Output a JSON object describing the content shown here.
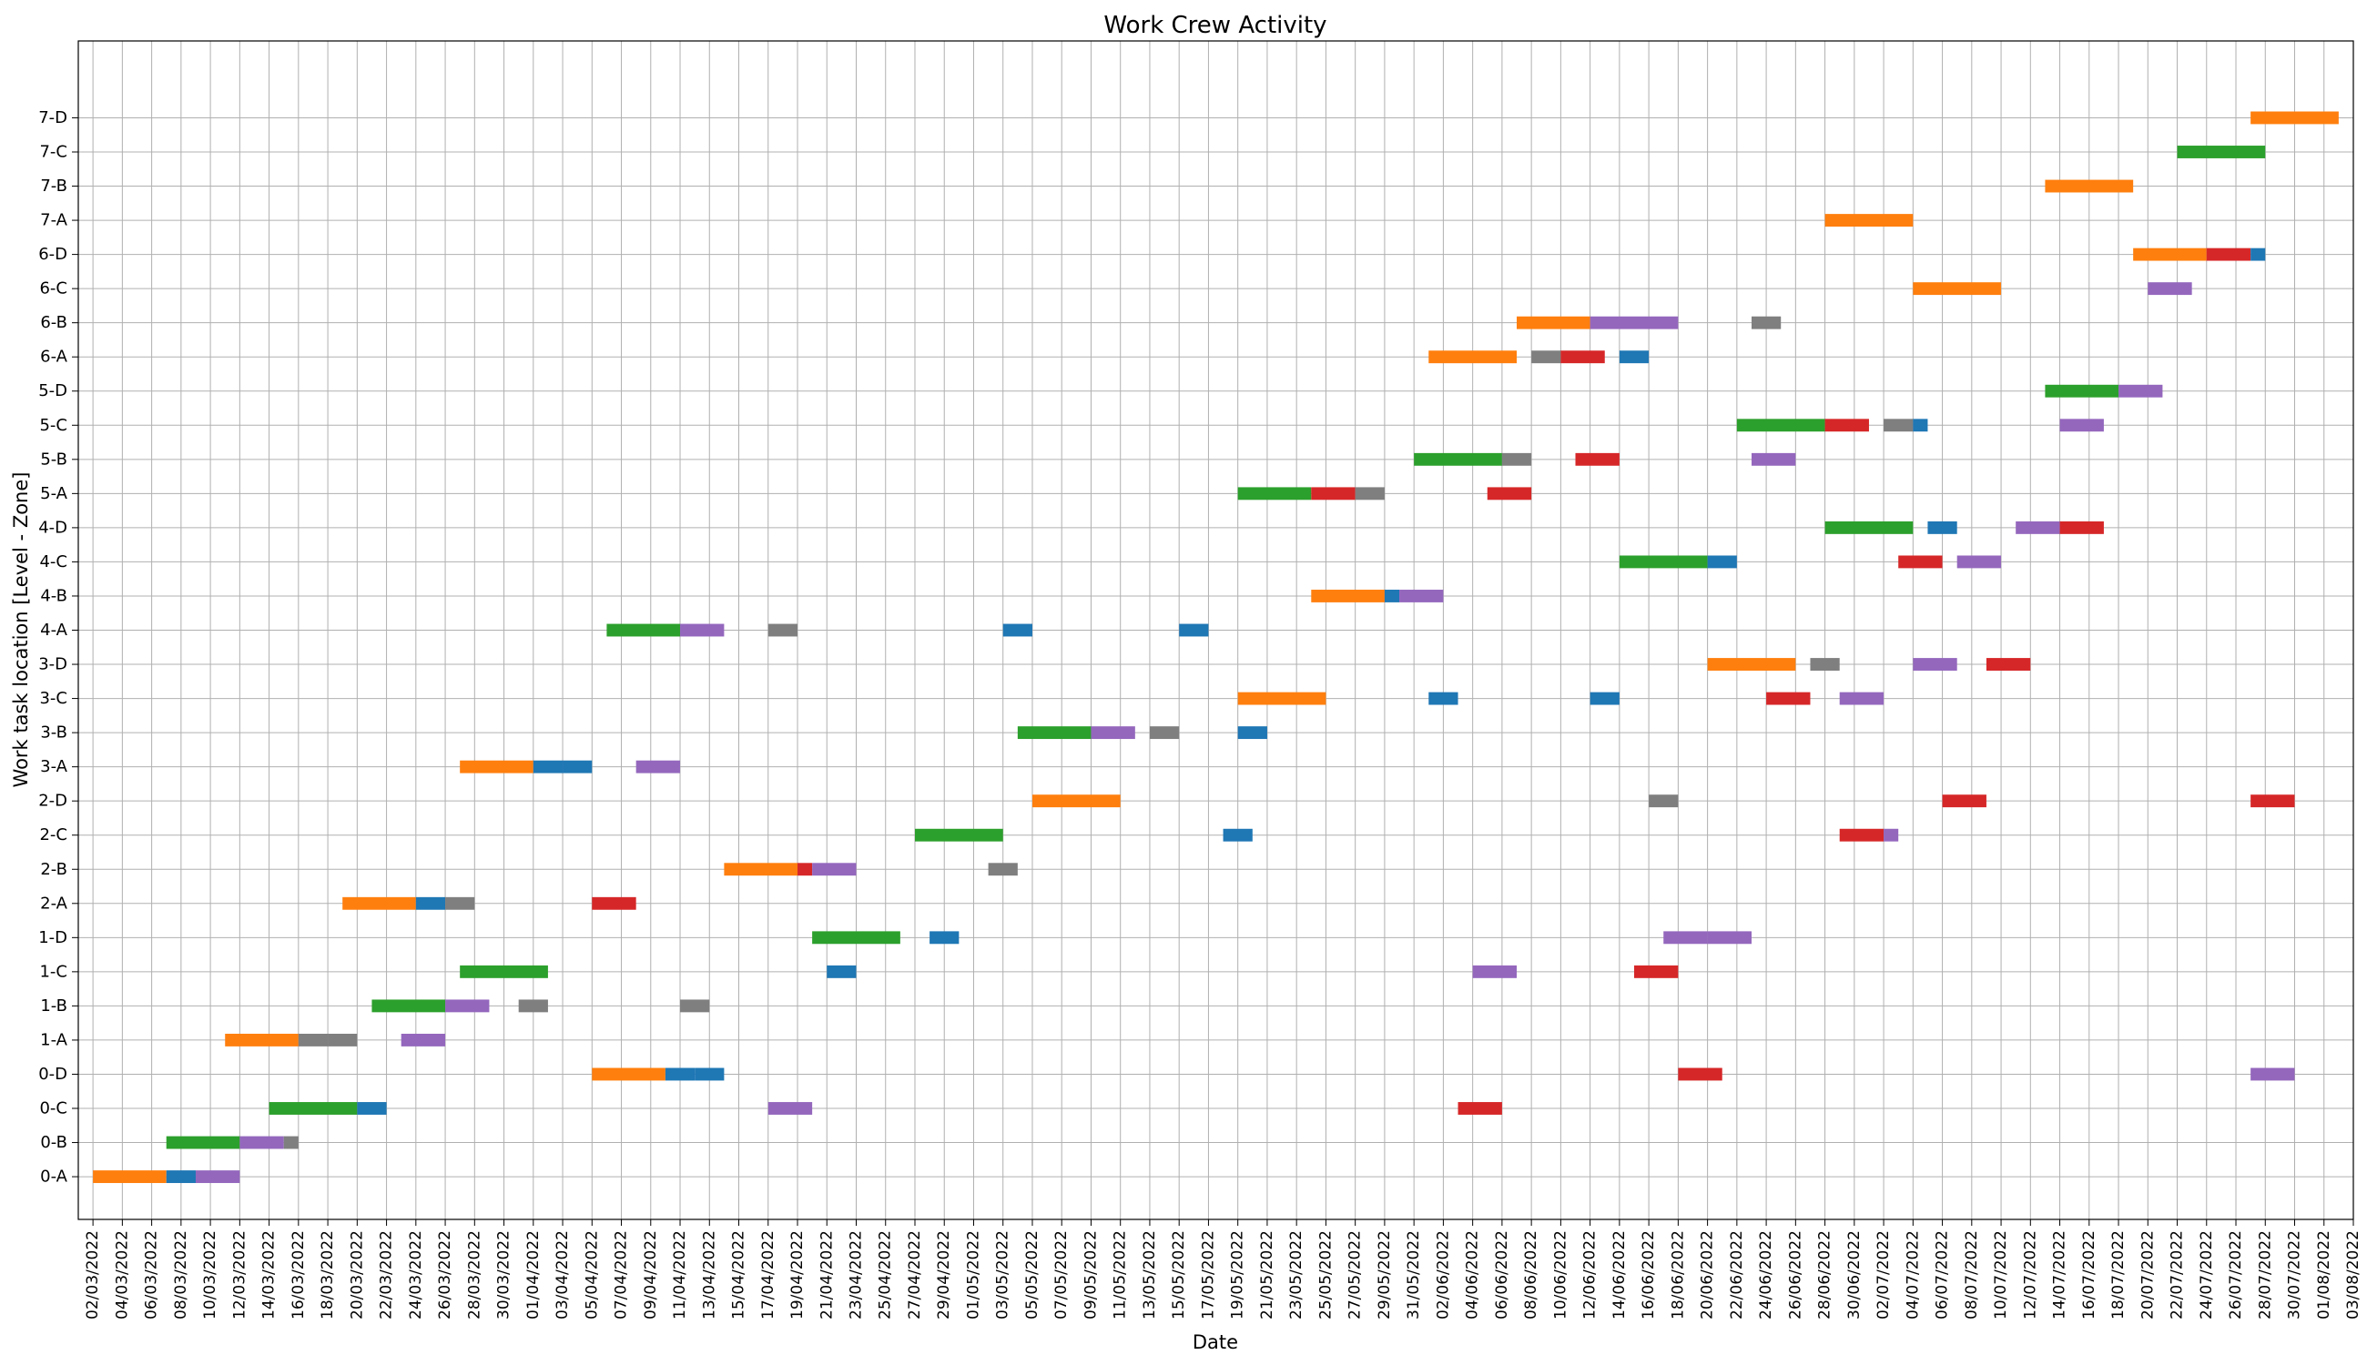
{
  "chart_data": {
    "type": "gantt",
    "title": "Work Crew Activity",
    "xlabel": "Date",
    "ylabel": "Work task location [Level - Zone]",
    "x_range": [
      "2022-03-01",
      "2022-08-03"
    ],
    "x_tick_step_days": 2,
    "grid": true,
    "legend": "none",
    "palette": {
      "orange": "#ff7f0e",
      "blue": "#1f77b4",
      "green": "#2ca02c",
      "red": "#d62728",
      "purple": "#9467bd",
      "gray": "#7f7f7f"
    },
    "locations": [
      "0-A",
      "0-B",
      "0-C",
      "0-D",
      "1-A",
      "1-B",
      "1-C",
      "1-D",
      "2-A",
      "2-B",
      "2-C",
      "2-D",
      "3-A",
      "3-B",
      "3-C",
      "3-D",
      "4-A",
      "4-B",
      "4-C",
      "4-D",
      "5-A",
      "5-B",
      "5-C",
      "5-D",
      "6-A",
      "6-B",
      "6-C",
      "6-D",
      "7-A",
      "7-B",
      "7-C",
      "7-D"
    ],
    "tasks": [
      {
        "location": "0-A",
        "start": "2022-03-02",
        "end": "2022-03-07",
        "color": "orange"
      },
      {
        "location": "0-A",
        "start": "2022-03-07",
        "end": "2022-03-09",
        "color": "blue"
      },
      {
        "location": "0-A",
        "start": "2022-03-09",
        "end": "2022-03-12",
        "color": "purple"
      },
      {
        "location": "0-B",
        "start": "2022-03-07",
        "end": "2022-03-12",
        "color": "green"
      },
      {
        "location": "0-B",
        "start": "2022-03-12",
        "end": "2022-03-15",
        "color": "purple"
      },
      {
        "location": "0-B",
        "start": "2022-03-15",
        "end": "2022-03-16",
        "color": "gray"
      },
      {
        "location": "0-C",
        "start": "2022-03-14",
        "end": "2022-03-20",
        "color": "green"
      },
      {
        "location": "0-C",
        "start": "2022-03-20",
        "end": "2022-03-22",
        "color": "blue"
      },
      {
        "location": "0-C",
        "start": "2022-04-17",
        "end": "2022-04-20",
        "color": "purple"
      },
      {
        "location": "0-C",
        "start": "2022-06-03",
        "end": "2022-06-06",
        "color": "red"
      },
      {
        "location": "0-D",
        "start": "2022-04-05",
        "end": "2022-04-10",
        "color": "orange"
      },
      {
        "location": "0-D",
        "start": "2022-04-10",
        "end": "2022-04-12",
        "color": "blue"
      },
      {
        "location": "0-D",
        "start": "2022-04-12",
        "end": "2022-04-14",
        "color": "blue"
      },
      {
        "location": "0-D",
        "start": "2022-06-18",
        "end": "2022-06-21",
        "color": "red"
      },
      {
        "location": "0-D",
        "start": "2022-07-27",
        "end": "2022-07-30",
        "color": "purple"
      },
      {
        "location": "1-A",
        "start": "2022-03-11",
        "end": "2022-03-16",
        "color": "orange"
      },
      {
        "location": "1-A",
        "start": "2022-03-16",
        "end": "2022-03-18",
        "color": "gray"
      },
      {
        "location": "1-A",
        "start": "2022-03-18",
        "end": "2022-03-20",
        "color": "gray"
      },
      {
        "location": "1-A",
        "start": "2022-03-23",
        "end": "2022-03-26",
        "color": "purple"
      },
      {
        "location": "1-B",
        "start": "2022-03-21",
        "end": "2022-03-26",
        "color": "green"
      },
      {
        "location": "1-B",
        "start": "2022-03-26",
        "end": "2022-03-29",
        "color": "purple"
      },
      {
        "location": "1-B",
        "start": "2022-03-31",
        "end": "2022-04-02",
        "color": "gray"
      },
      {
        "location": "1-B",
        "start": "2022-04-11",
        "end": "2022-04-13",
        "color": "gray"
      },
      {
        "location": "1-C",
        "start": "2022-03-27",
        "end": "2022-04-02",
        "color": "green"
      },
      {
        "location": "1-C",
        "start": "2022-04-21",
        "end": "2022-04-23",
        "color": "blue"
      },
      {
        "location": "1-C",
        "start": "2022-06-04",
        "end": "2022-06-07",
        "color": "purple"
      },
      {
        "location": "1-C",
        "start": "2022-06-15",
        "end": "2022-06-18",
        "color": "red"
      },
      {
        "location": "1-D",
        "start": "2022-04-20",
        "end": "2022-04-26",
        "color": "green"
      },
      {
        "location": "1-D",
        "start": "2022-04-28",
        "end": "2022-04-30",
        "color": "blue"
      },
      {
        "location": "1-D",
        "start": "2022-06-17",
        "end": "2022-06-20",
        "color": "purple"
      },
      {
        "location": "1-D",
        "start": "2022-06-20",
        "end": "2022-06-23",
        "color": "purple"
      },
      {
        "location": "2-A",
        "start": "2022-03-19",
        "end": "2022-03-24",
        "color": "orange"
      },
      {
        "location": "2-A",
        "start": "2022-03-24",
        "end": "2022-03-26",
        "color": "blue"
      },
      {
        "location": "2-A",
        "start": "2022-03-26",
        "end": "2022-03-28",
        "color": "gray"
      },
      {
        "location": "2-A",
        "start": "2022-04-05",
        "end": "2022-04-08",
        "color": "red"
      },
      {
        "location": "2-B",
        "start": "2022-04-14",
        "end": "2022-04-19",
        "color": "orange"
      },
      {
        "location": "2-B",
        "start": "2022-04-19",
        "end": "2022-04-20",
        "color": "red"
      },
      {
        "location": "2-B",
        "start": "2022-04-20",
        "end": "2022-04-23",
        "color": "purple"
      },
      {
        "location": "2-B",
        "start": "2022-05-02",
        "end": "2022-05-04",
        "color": "gray"
      },
      {
        "location": "2-C",
        "start": "2022-04-27",
        "end": "2022-05-03",
        "color": "green"
      },
      {
        "location": "2-C",
        "start": "2022-05-18",
        "end": "2022-05-20",
        "color": "blue"
      },
      {
        "location": "2-C",
        "start": "2022-06-29",
        "end": "2022-07-02",
        "color": "red"
      },
      {
        "location": "2-C",
        "start": "2022-07-02",
        "end": "2022-07-03",
        "color": "purple"
      },
      {
        "location": "2-D",
        "start": "2022-05-05",
        "end": "2022-05-11",
        "color": "orange"
      },
      {
        "location": "2-D",
        "start": "2022-06-16",
        "end": "2022-06-18",
        "color": "gray"
      },
      {
        "location": "2-D",
        "start": "2022-07-06",
        "end": "2022-07-09",
        "color": "red"
      },
      {
        "location": "2-D",
        "start": "2022-07-27",
        "end": "2022-07-30",
        "color": "red"
      },
      {
        "location": "3-A",
        "start": "2022-03-27",
        "end": "2022-04-01",
        "color": "orange"
      },
      {
        "location": "3-A",
        "start": "2022-04-01",
        "end": "2022-04-03",
        "color": "blue"
      },
      {
        "location": "3-A",
        "start": "2022-04-03",
        "end": "2022-04-05",
        "color": "blue"
      },
      {
        "location": "3-A",
        "start": "2022-04-08",
        "end": "2022-04-11",
        "color": "purple"
      },
      {
        "location": "3-B",
        "start": "2022-05-04",
        "end": "2022-05-09",
        "color": "green"
      },
      {
        "location": "3-B",
        "start": "2022-05-09",
        "end": "2022-05-12",
        "color": "purple"
      },
      {
        "location": "3-B",
        "start": "2022-05-13",
        "end": "2022-05-15",
        "color": "gray"
      },
      {
        "location": "3-B",
        "start": "2022-05-19",
        "end": "2022-05-21",
        "color": "blue"
      },
      {
        "location": "3-C",
        "start": "2022-05-19",
        "end": "2022-05-25",
        "color": "orange"
      },
      {
        "location": "3-C",
        "start": "2022-06-01",
        "end": "2022-06-03",
        "color": "blue"
      },
      {
        "location": "3-C",
        "start": "2022-06-12",
        "end": "2022-06-14",
        "color": "blue"
      },
      {
        "location": "3-C",
        "start": "2022-06-24",
        "end": "2022-06-27",
        "color": "red"
      },
      {
        "location": "3-C",
        "start": "2022-06-29",
        "end": "2022-07-02",
        "color": "purple"
      },
      {
        "location": "3-D",
        "start": "2022-06-20",
        "end": "2022-06-26",
        "color": "orange"
      },
      {
        "location": "3-D",
        "start": "2022-06-27",
        "end": "2022-06-29",
        "color": "gray"
      },
      {
        "location": "3-D",
        "start": "2022-07-04",
        "end": "2022-07-07",
        "color": "purple"
      },
      {
        "location": "3-D",
        "start": "2022-07-09",
        "end": "2022-07-12",
        "color": "red"
      },
      {
        "location": "4-A",
        "start": "2022-04-06",
        "end": "2022-04-11",
        "color": "green"
      },
      {
        "location": "4-A",
        "start": "2022-04-11",
        "end": "2022-04-14",
        "color": "purple"
      },
      {
        "location": "4-A",
        "start": "2022-04-17",
        "end": "2022-04-19",
        "color": "gray"
      },
      {
        "location": "4-A",
        "start": "2022-05-03",
        "end": "2022-05-05",
        "color": "blue"
      },
      {
        "location": "4-A",
        "start": "2022-05-15",
        "end": "2022-05-17",
        "color": "blue"
      },
      {
        "location": "4-B",
        "start": "2022-05-24",
        "end": "2022-05-29",
        "color": "orange"
      },
      {
        "location": "4-B",
        "start": "2022-05-29",
        "end": "2022-05-30",
        "color": "blue"
      },
      {
        "location": "4-B",
        "start": "2022-05-30",
        "end": "2022-06-02",
        "color": "purple"
      },
      {
        "location": "4-C",
        "start": "2022-06-14",
        "end": "2022-06-20",
        "color": "green"
      },
      {
        "location": "4-C",
        "start": "2022-06-20",
        "end": "2022-06-22",
        "color": "blue"
      },
      {
        "location": "4-C",
        "start": "2022-07-03",
        "end": "2022-07-06",
        "color": "red"
      },
      {
        "location": "4-C",
        "start": "2022-07-07",
        "end": "2022-07-10",
        "color": "purple"
      },
      {
        "location": "4-D",
        "start": "2022-06-28",
        "end": "2022-07-04",
        "color": "green"
      },
      {
        "location": "4-D",
        "start": "2022-07-05",
        "end": "2022-07-07",
        "color": "blue"
      },
      {
        "location": "4-D",
        "start": "2022-07-11",
        "end": "2022-07-14",
        "color": "purple"
      },
      {
        "location": "4-D",
        "start": "2022-07-14",
        "end": "2022-07-17",
        "color": "red"
      },
      {
        "location": "5-A",
        "start": "2022-05-19",
        "end": "2022-05-24",
        "color": "green"
      },
      {
        "location": "5-A",
        "start": "2022-05-24",
        "end": "2022-05-27",
        "color": "red"
      },
      {
        "location": "5-A",
        "start": "2022-05-27",
        "end": "2022-05-29",
        "color": "gray"
      },
      {
        "location": "5-A",
        "start": "2022-06-05",
        "end": "2022-06-08",
        "color": "red"
      },
      {
        "location": "5-B",
        "start": "2022-05-31",
        "end": "2022-06-06",
        "color": "green"
      },
      {
        "location": "5-B",
        "start": "2022-06-06",
        "end": "2022-06-08",
        "color": "gray"
      },
      {
        "location": "5-B",
        "start": "2022-06-11",
        "end": "2022-06-14",
        "color": "red"
      },
      {
        "location": "5-B",
        "start": "2022-06-23",
        "end": "2022-06-26",
        "color": "purple"
      },
      {
        "location": "5-C",
        "start": "2022-06-22",
        "end": "2022-06-28",
        "color": "green"
      },
      {
        "location": "5-C",
        "start": "2022-06-28",
        "end": "2022-07-01",
        "color": "red"
      },
      {
        "location": "5-C",
        "start": "2022-07-02",
        "end": "2022-07-04",
        "color": "gray"
      },
      {
        "location": "5-C",
        "start": "2022-07-04",
        "end": "2022-07-05",
        "color": "blue"
      },
      {
        "location": "5-C",
        "start": "2022-07-14",
        "end": "2022-07-17",
        "color": "purple"
      },
      {
        "location": "5-D",
        "start": "2022-07-13",
        "end": "2022-07-18",
        "color": "green"
      },
      {
        "location": "5-D",
        "start": "2022-07-18",
        "end": "2022-07-21",
        "color": "purple"
      },
      {
        "location": "6-A",
        "start": "2022-06-01",
        "end": "2022-06-07",
        "color": "orange"
      },
      {
        "location": "6-A",
        "start": "2022-06-08",
        "end": "2022-06-10",
        "color": "gray"
      },
      {
        "location": "6-A",
        "start": "2022-06-10",
        "end": "2022-06-13",
        "color": "red"
      },
      {
        "location": "6-A",
        "start": "2022-06-14",
        "end": "2022-06-16",
        "color": "blue"
      },
      {
        "location": "6-B",
        "start": "2022-06-07",
        "end": "2022-06-12",
        "color": "orange"
      },
      {
        "location": "6-B",
        "start": "2022-06-12",
        "end": "2022-06-15",
        "color": "purple"
      },
      {
        "location": "6-B",
        "start": "2022-06-15",
        "end": "2022-06-18",
        "color": "purple"
      },
      {
        "location": "6-B",
        "start": "2022-06-23",
        "end": "2022-06-25",
        "color": "gray"
      },
      {
        "location": "6-C",
        "start": "2022-07-04",
        "end": "2022-07-10",
        "color": "orange"
      },
      {
        "location": "6-C",
        "start": "2022-07-20",
        "end": "2022-07-23",
        "color": "purple"
      },
      {
        "location": "6-D",
        "start": "2022-07-19",
        "end": "2022-07-24",
        "color": "orange"
      },
      {
        "location": "6-D",
        "start": "2022-07-24",
        "end": "2022-07-27",
        "color": "red"
      },
      {
        "location": "6-D",
        "start": "2022-07-27",
        "end": "2022-07-28",
        "color": "blue"
      },
      {
        "location": "7-A",
        "start": "2022-06-28",
        "end": "2022-07-04",
        "color": "orange"
      },
      {
        "location": "7-B",
        "start": "2022-07-13",
        "end": "2022-07-19",
        "color": "orange"
      },
      {
        "location": "7-C",
        "start": "2022-07-22",
        "end": "2022-07-28",
        "color": "green"
      },
      {
        "location": "7-D",
        "start": "2022-07-27",
        "end": "2022-08-02",
        "color": "orange"
      }
    ]
  }
}
